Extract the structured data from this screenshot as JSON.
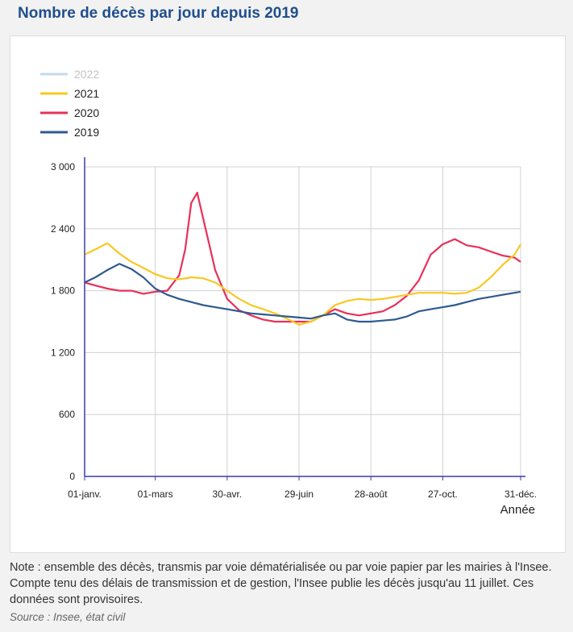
{
  "header": {
    "title": "Nombre de décès par jour depuis 2019"
  },
  "footer": {
    "note": "Note : ensemble des décès, transmis par voie dématérialisée ou par voie papier par les mairies à l'Insee. Compte tenu des délais de transmission et de gestion, l'Insee publie les décès jusqu'au 11 juillet. Ces données sont provisoires.",
    "source": "Source : Insee, état civil"
  },
  "chart_data": {
    "type": "line",
    "title": "Nombre de décès par jour depuis 2019",
    "xlabel": "Année",
    "ylabel": "",
    "xlim": [
      1,
      365
    ],
    "ylim": [
      0,
      3000
    ],
    "yticks": [
      0,
      600,
      1200,
      1800,
      2400,
      3000
    ],
    "ytick_labels": [
      "0",
      "600",
      "1 200",
      "1 800",
      "2 400",
      "3 000"
    ],
    "xticks": [
      1,
      60,
      120,
      180,
      240,
      300,
      365
    ],
    "xtick_labels": [
      "01-janv.",
      "01-mars",
      "30-avr.",
      "29-juin",
      "28-août",
      "27-oct.",
      "31-déc."
    ],
    "grid": true,
    "legend_position": "top-left",
    "series": [
      {
        "name": "2022",
        "color": "#c5d9ee",
        "inactive": true,
        "x": [],
        "values": []
      },
      {
        "name": "2021",
        "color": "#f9c823",
        "x": [
          1,
          10,
          20,
          30,
          40,
          50,
          60,
          70,
          80,
          90,
          100,
          110,
          120,
          130,
          140,
          150,
          160,
          170,
          180,
          190,
          200,
          210,
          220,
          230,
          240,
          250,
          260,
          270,
          280,
          290,
          300,
          310,
          320,
          330,
          340,
          350,
          360,
          365
        ],
        "values": [
          2150,
          2200,
          2260,
          2160,
          2080,
          2020,
          1960,
          1920,
          1910,
          1930,
          1920,
          1880,
          1800,
          1720,
          1660,
          1620,
          1580,
          1530,
          1470,
          1500,
          1560,
          1660,
          1700,
          1720,
          1710,
          1720,
          1740,
          1760,
          1780,
          1780,
          1780,
          1770,
          1780,
          1830,
          1930,
          2050,
          2150,
          2250
        ]
      },
      {
        "name": "2020",
        "color": "#e8305a",
        "x": [
          1,
          10,
          20,
          30,
          40,
          50,
          60,
          70,
          80,
          85,
          90,
          95,
          100,
          105,
          110,
          120,
          130,
          140,
          150,
          160,
          170,
          180,
          190,
          200,
          210,
          220,
          230,
          240,
          250,
          260,
          270,
          280,
          290,
          300,
          310,
          320,
          330,
          340,
          350,
          360,
          365
        ],
        "values": [
          1880,
          1850,
          1820,
          1800,
          1800,
          1770,
          1790,
          1800,
          1950,
          2200,
          2650,
          2750,
          2500,
          2250,
          2000,
          1720,
          1610,
          1560,
          1520,
          1500,
          1500,
          1500,
          1500,
          1560,
          1620,
          1580,
          1560,
          1580,
          1600,
          1660,
          1750,
          1900,
          2150,
          2250,
          2300,
          2240,
          2220,
          2180,
          2140,
          2120,
          2080
        ]
      },
      {
        "name": "2019",
        "color": "#2e5a91",
        "x": [
          1,
          10,
          20,
          30,
          40,
          50,
          60,
          70,
          80,
          90,
          100,
          110,
          120,
          130,
          140,
          150,
          160,
          170,
          180,
          190,
          200,
          210,
          220,
          230,
          240,
          250,
          260,
          270,
          280,
          290,
          300,
          310,
          320,
          330,
          340,
          350,
          360,
          365
        ],
        "values": [
          1880,
          1930,
          2000,
          2060,
          2010,
          1930,
          1820,
          1760,
          1720,
          1690,
          1660,
          1640,
          1620,
          1600,
          1580,
          1570,
          1560,
          1550,
          1540,
          1530,
          1560,
          1580,
          1520,
          1500,
          1500,
          1510,
          1520,
          1550,
          1600,
          1620,
          1640,
          1660,
          1690,
          1720,
          1740,
          1760,
          1780,
          1790
        ]
      }
    ]
  }
}
